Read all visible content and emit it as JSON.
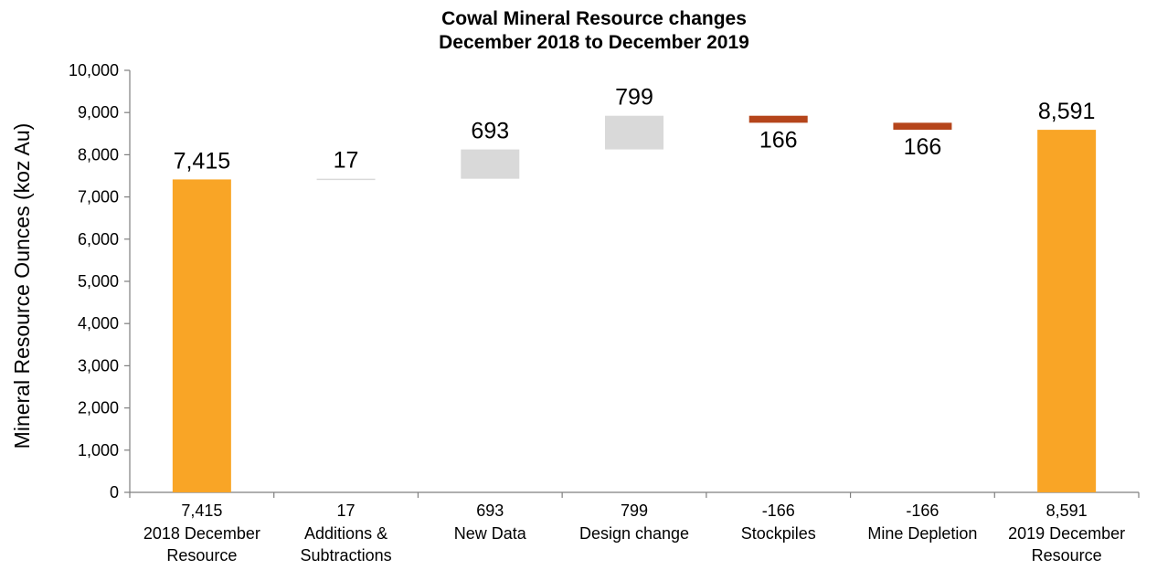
{
  "chart_data": {
    "type": "bar",
    "subtype": "waterfall",
    "title_lines": [
      "Cowal Mineral Resource changes",
      "December 2018 to December 2019"
    ],
    "ylabel": "Mineral Resource Ounces (koz Au)",
    "xlabel": "",
    "ylim": [
      0,
      10000
    ],
    "yticks": [
      0,
      1000,
      2000,
      3000,
      4000,
      5000,
      6000,
      7000,
      8000,
      9000,
      10000
    ],
    "ytick_labels": [
      "0",
      "1,000",
      "2,000",
      "3,000",
      "4,000",
      "5,000",
      "6,000",
      "7,000",
      "8,000",
      "9,000",
      "10,000"
    ],
    "grid": false,
    "legend": "none",
    "colors": {
      "total": "#F9A526",
      "increase": "#D9D9D9",
      "decrease": "#B5451B",
      "axis": "#7F7F7F"
    },
    "bars": [
      {
        "kind": "total",
        "value": 7415,
        "data_label": "7,415",
        "cat_lines": [
          "7,415",
          "2018 December",
          "Resource"
        ]
      },
      {
        "kind": "increase",
        "value": 17,
        "data_label": "17",
        "cat_lines": [
          "17",
          "Additions &",
          "Subtractions"
        ]
      },
      {
        "kind": "increase",
        "value": 693,
        "data_label": "693",
        "cat_lines": [
          "693",
          "New Data"
        ]
      },
      {
        "kind": "increase",
        "value": 799,
        "data_label": "799",
        "cat_lines": [
          "799",
          "Design change"
        ]
      },
      {
        "kind": "decrease",
        "value": -166,
        "data_label": "166",
        "cat_lines": [
          "-166",
          "Stockpiles"
        ]
      },
      {
        "kind": "decrease",
        "value": -166,
        "data_label": "166",
        "cat_lines": [
          "-166",
          "Mine Depletion"
        ]
      },
      {
        "kind": "total",
        "value": 8591,
        "data_label": "8,591",
        "cat_lines": [
          "8,591",
          "2019 December",
          "Resource"
        ]
      }
    ]
  }
}
